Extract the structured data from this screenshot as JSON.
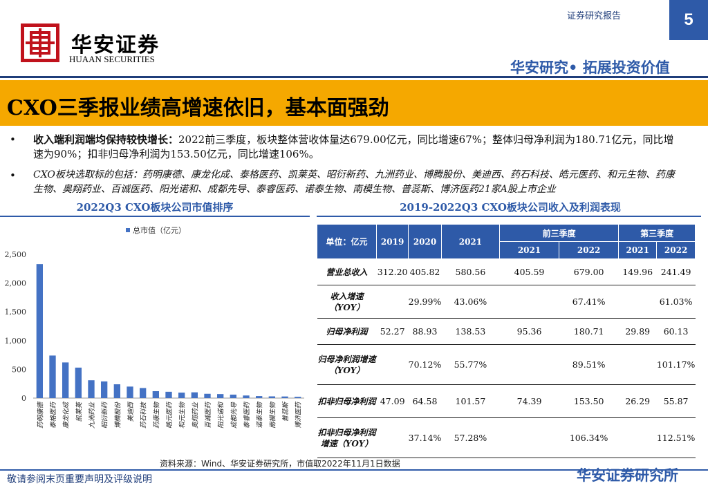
{
  "header": {
    "report_label": "证券研究报告",
    "page_number": "5",
    "brand_cn": "华安证券",
    "brand_en": "HUAAN SECURITIES",
    "slogan": "华安研究• 拓展投资价值"
  },
  "title": "CXO三季报业绩高增速依旧，基本面强劲",
  "bullets": [
    {
      "marker": "•",
      "bold": "收入端利润端均保持较快增长：",
      "text": "2022前三季度，板块整体营收体量达679.00亿元，同比增速67%；整体归母净利润为180.71亿元，同比增速为90%；扣非归母净利润为153.50亿元，同比增速106%。"
    },
    {
      "marker": "•",
      "text": "CXO板块选取标的包括：药明康德、康龙化成、泰格医药、凯莱英、昭衍新药、九洲药业、博腾股份、美迪西、药石科技、皓元医药、和元生物、药康生物、奥翔药业、百诚医药、阳光诺和、成都先导、泰睿医药、诺泰生物、南模生物、普蕊斯、博济医药21家A股上市企业"
    }
  ],
  "chart_title": "2022Q3 CXO板块公司市值排序",
  "table_title": "2019-2022Q3 CXO板块公司收入及利润表现",
  "chart_data": {
    "type": "bar",
    "title": "2022Q3 CXO板块公司市值排序",
    "legend": "总市值（亿元）",
    "categories": [
      "药明康德",
      "泰格医药",
      "康龙化成",
      "凯莱英",
      "九洲药业",
      "昭衍新药",
      "博腾股份",
      "美迪西",
      "药石科技",
      "药康生物",
      "皓元医药",
      "和元生物",
      "奥翔药业",
      "百诚医药",
      "阳光诺和",
      "成都先导",
      "泰睿医药",
      "诺泰生物",
      "南模生物",
      "普蕊斯",
      "博济医药"
    ],
    "values": [
      2330,
      740,
      620,
      530,
      310,
      290,
      240,
      200,
      175,
      120,
      110,
      95,
      100,
      75,
      70,
      60,
      45,
      35,
      30,
      28,
      22
    ],
    "yticks": [
      "0",
      "500",
      "1,000",
      "1,500",
      "2,000",
      "2,500"
    ],
    "ylim": [
      0,
      2500
    ],
    "color": "#4472c4"
  },
  "table": {
    "header_unit": "单位：亿元",
    "years": [
      "2019",
      "2020",
      "2021"
    ],
    "group1": "前三季度",
    "group2": "第三季度",
    "sub": [
      "2021",
      "2022",
      "2021",
      "2022"
    ],
    "rows": [
      {
        "label": "营业总收入",
        "cells": [
          "312.20",
          "405.82",
          "580.56",
          "405.59",
          "679.00",
          "149.96",
          "241.49"
        ]
      },
      {
        "label": "收入增速（YOY）",
        "cells": [
          "",
          "29.99%",
          "43.06%",
          "",
          "67.41%",
          "",
          "61.03%"
        ]
      },
      {
        "label": "归母净利润",
        "cells": [
          "52.27",
          "88.93",
          "138.53",
          "95.36",
          "180.71",
          "29.89",
          "60.13"
        ]
      },
      {
        "label": "归母净利润增速（YOY）",
        "cells": [
          "",
          "70.12%",
          "55.77%",
          "",
          "89.51%",
          "",
          "101.17%"
        ]
      },
      {
        "label": "扣非归母净利润",
        "cells": [
          "47.09",
          "64.58",
          "101.57",
          "74.39",
          "153.50",
          "26.29",
          "55.87"
        ]
      },
      {
        "label": "扣非归母净利润增速（YOY）",
        "cells": [
          "",
          "37.14%",
          "57.28%",
          "",
          "106.34%",
          "",
          "112.51%"
        ]
      }
    ]
  },
  "source": "资料来源：Wind、华安证券研究所，市值取2022年11月1日数据",
  "footer": {
    "disclaimer": "敬请参阅末页重要声明及评级说明",
    "institute": "华安证券研究所"
  },
  "colors": {
    "accent": "#2e5aa8",
    "title_bar": "#f5a800",
    "logo_red": "#c0121c"
  }
}
